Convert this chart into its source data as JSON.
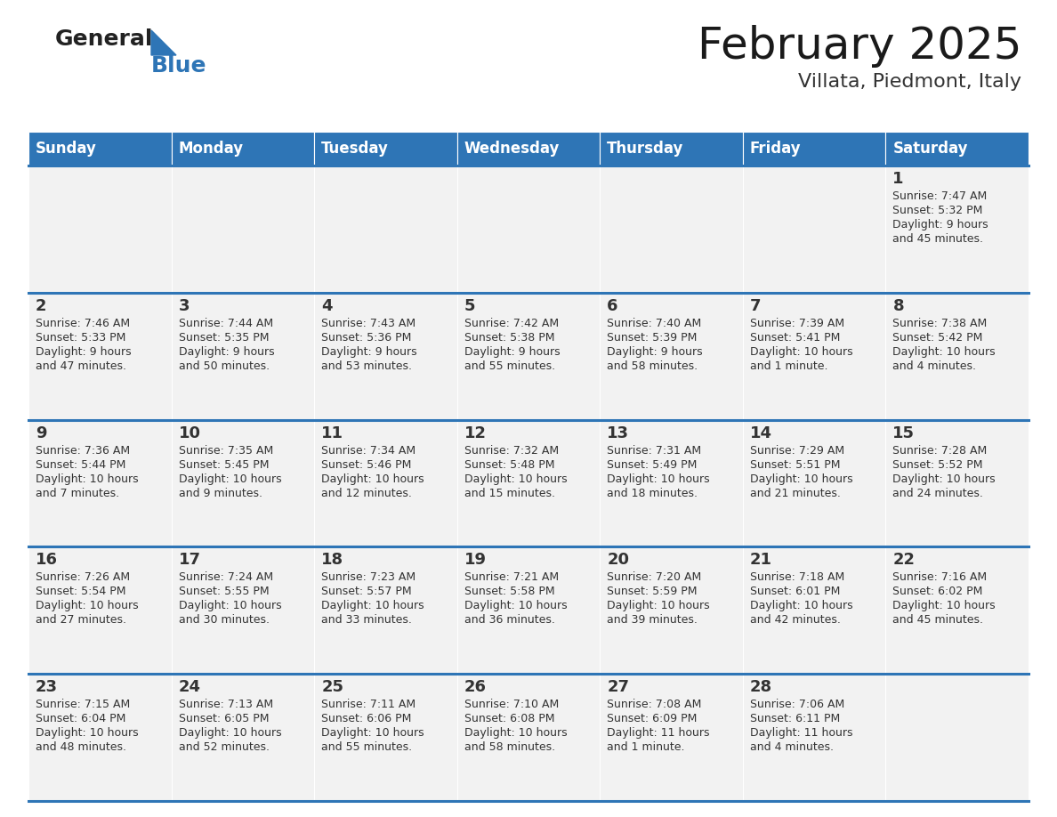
{
  "title": "February 2025",
  "subtitle": "Villata, Piedmont, Italy",
  "header_color": "#2e75b6",
  "header_text_color": "#ffffff",
  "cell_bg_light": "#f2f2f2",
  "cell_bg_white": "#ffffff",
  "separator_color": "#2e75b6",
  "text_color": "#333333",
  "logo_general_color": "#222222",
  "logo_blue_color": "#2e75b6",
  "logo_triangle_color": "#2e75b6",
  "days_of_week": [
    "Sunday",
    "Monday",
    "Tuesday",
    "Wednesday",
    "Thursday",
    "Friday",
    "Saturday"
  ],
  "calendar_data": [
    [
      {
        "day": "",
        "sunrise": "",
        "sunset": "",
        "daylight": ""
      },
      {
        "day": "",
        "sunrise": "",
        "sunset": "",
        "daylight": ""
      },
      {
        "day": "",
        "sunrise": "",
        "sunset": "",
        "daylight": ""
      },
      {
        "day": "",
        "sunrise": "",
        "sunset": "",
        "daylight": ""
      },
      {
        "day": "",
        "sunrise": "",
        "sunset": "",
        "daylight": ""
      },
      {
        "day": "",
        "sunrise": "",
        "sunset": "",
        "daylight": ""
      },
      {
        "day": "1",
        "sunrise": "Sunrise: 7:47 AM",
        "sunset": "Sunset: 5:32 PM",
        "daylight": "Daylight: 9 hours\nand 45 minutes."
      }
    ],
    [
      {
        "day": "2",
        "sunrise": "Sunrise: 7:46 AM",
        "sunset": "Sunset: 5:33 PM",
        "daylight": "Daylight: 9 hours\nand 47 minutes."
      },
      {
        "day": "3",
        "sunrise": "Sunrise: 7:44 AM",
        "sunset": "Sunset: 5:35 PM",
        "daylight": "Daylight: 9 hours\nand 50 minutes."
      },
      {
        "day": "4",
        "sunrise": "Sunrise: 7:43 AM",
        "sunset": "Sunset: 5:36 PM",
        "daylight": "Daylight: 9 hours\nand 53 minutes."
      },
      {
        "day": "5",
        "sunrise": "Sunrise: 7:42 AM",
        "sunset": "Sunset: 5:38 PM",
        "daylight": "Daylight: 9 hours\nand 55 minutes."
      },
      {
        "day": "6",
        "sunrise": "Sunrise: 7:40 AM",
        "sunset": "Sunset: 5:39 PM",
        "daylight": "Daylight: 9 hours\nand 58 minutes."
      },
      {
        "day": "7",
        "sunrise": "Sunrise: 7:39 AM",
        "sunset": "Sunset: 5:41 PM",
        "daylight": "Daylight: 10 hours\nand 1 minute."
      },
      {
        "day": "8",
        "sunrise": "Sunrise: 7:38 AM",
        "sunset": "Sunset: 5:42 PM",
        "daylight": "Daylight: 10 hours\nand 4 minutes."
      }
    ],
    [
      {
        "day": "9",
        "sunrise": "Sunrise: 7:36 AM",
        "sunset": "Sunset: 5:44 PM",
        "daylight": "Daylight: 10 hours\nand 7 minutes."
      },
      {
        "day": "10",
        "sunrise": "Sunrise: 7:35 AM",
        "sunset": "Sunset: 5:45 PM",
        "daylight": "Daylight: 10 hours\nand 9 minutes."
      },
      {
        "day": "11",
        "sunrise": "Sunrise: 7:34 AM",
        "sunset": "Sunset: 5:46 PM",
        "daylight": "Daylight: 10 hours\nand 12 minutes."
      },
      {
        "day": "12",
        "sunrise": "Sunrise: 7:32 AM",
        "sunset": "Sunset: 5:48 PM",
        "daylight": "Daylight: 10 hours\nand 15 minutes."
      },
      {
        "day": "13",
        "sunrise": "Sunrise: 7:31 AM",
        "sunset": "Sunset: 5:49 PM",
        "daylight": "Daylight: 10 hours\nand 18 minutes."
      },
      {
        "day": "14",
        "sunrise": "Sunrise: 7:29 AM",
        "sunset": "Sunset: 5:51 PM",
        "daylight": "Daylight: 10 hours\nand 21 minutes."
      },
      {
        "day": "15",
        "sunrise": "Sunrise: 7:28 AM",
        "sunset": "Sunset: 5:52 PM",
        "daylight": "Daylight: 10 hours\nand 24 minutes."
      }
    ],
    [
      {
        "day": "16",
        "sunrise": "Sunrise: 7:26 AM",
        "sunset": "Sunset: 5:54 PM",
        "daylight": "Daylight: 10 hours\nand 27 minutes."
      },
      {
        "day": "17",
        "sunrise": "Sunrise: 7:24 AM",
        "sunset": "Sunset: 5:55 PM",
        "daylight": "Daylight: 10 hours\nand 30 minutes."
      },
      {
        "day": "18",
        "sunrise": "Sunrise: 7:23 AM",
        "sunset": "Sunset: 5:57 PM",
        "daylight": "Daylight: 10 hours\nand 33 minutes."
      },
      {
        "day": "19",
        "sunrise": "Sunrise: 7:21 AM",
        "sunset": "Sunset: 5:58 PM",
        "daylight": "Daylight: 10 hours\nand 36 minutes."
      },
      {
        "day": "20",
        "sunrise": "Sunrise: 7:20 AM",
        "sunset": "Sunset: 5:59 PM",
        "daylight": "Daylight: 10 hours\nand 39 minutes."
      },
      {
        "day": "21",
        "sunrise": "Sunrise: 7:18 AM",
        "sunset": "Sunset: 6:01 PM",
        "daylight": "Daylight: 10 hours\nand 42 minutes."
      },
      {
        "day": "22",
        "sunrise": "Sunrise: 7:16 AM",
        "sunset": "Sunset: 6:02 PM",
        "daylight": "Daylight: 10 hours\nand 45 minutes."
      }
    ],
    [
      {
        "day": "23",
        "sunrise": "Sunrise: 7:15 AM",
        "sunset": "Sunset: 6:04 PM",
        "daylight": "Daylight: 10 hours\nand 48 minutes."
      },
      {
        "day": "24",
        "sunrise": "Sunrise: 7:13 AM",
        "sunset": "Sunset: 6:05 PM",
        "daylight": "Daylight: 10 hours\nand 52 minutes."
      },
      {
        "day": "25",
        "sunrise": "Sunrise: 7:11 AM",
        "sunset": "Sunset: 6:06 PM",
        "daylight": "Daylight: 10 hours\nand 55 minutes."
      },
      {
        "day": "26",
        "sunrise": "Sunrise: 7:10 AM",
        "sunset": "Sunset: 6:08 PM",
        "daylight": "Daylight: 10 hours\nand 58 minutes."
      },
      {
        "day": "27",
        "sunrise": "Sunrise: 7:08 AM",
        "sunset": "Sunset: 6:09 PM",
        "daylight": "Daylight: 11 hours\nand 1 minute."
      },
      {
        "day": "28",
        "sunrise": "Sunrise: 7:06 AM",
        "sunset": "Sunset: 6:11 PM",
        "daylight": "Daylight: 11 hours\nand 4 minutes."
      },
      {
        "day": "",
        "sunrise": "",
        "sunset": "",
        "daylight": ""
      }
    ]
  ],
  "title_fontsize": 36,
  "subtitle_fontsize": 16,
  "header_fontsize": 12,
  "day_num_fontsize": 13,
  "cell_text_fontsize": 9
}
